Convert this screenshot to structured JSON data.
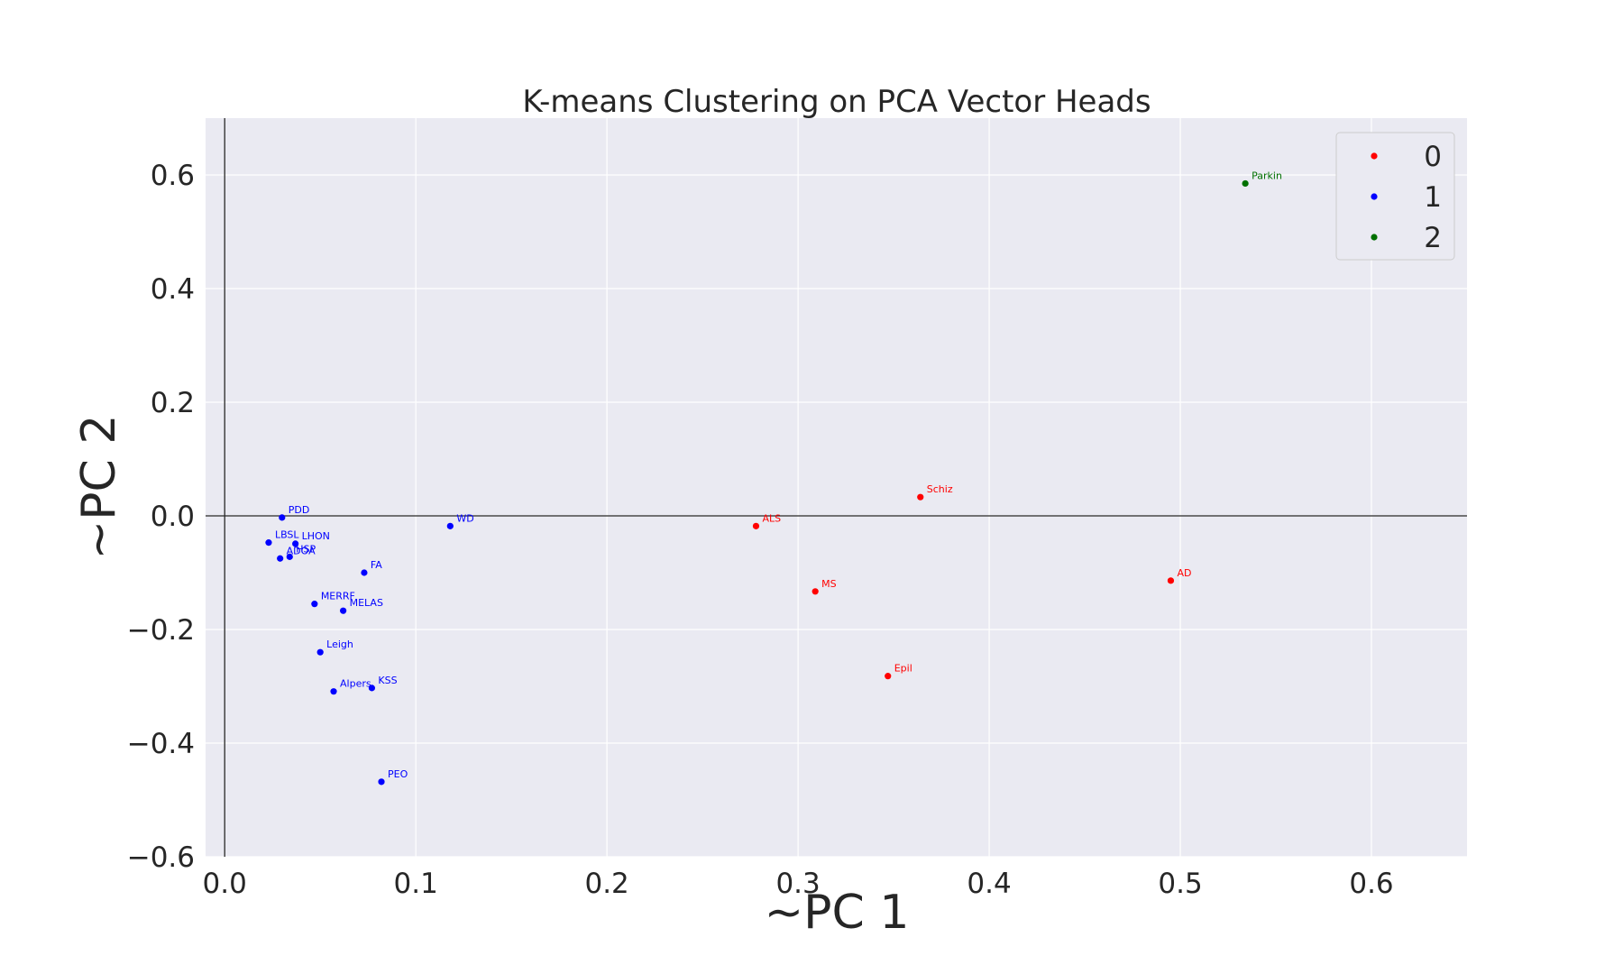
{
  "chart_data": {
    "type": "scatter",
    "title": "K-means Clustering on PCA Vector Heads",
    "xlabel": "~PC 1",
    "ylabel": "~PC 2",
    "xlim": [
      -0.01,
      0.65
    ],
    "ylim": [
      -0.6,
      0.7
    ],
    "xticks": [
      0.0,
      0.1,
      0.2,
      0.3,
      0.4,
      0.5,
      0.6
    ],
    "xtick_labels": [
      "0.0",
      "0.1",
      "0.2",
      "0.3",
      "0.4",
      "0.5",
      "0.6"
    ],
    "yticks": [
      0.6,
      0.4,
      0.2,
      0.0,
      -0.2,
      -0.4,
      -0.6
    ],
    "ytick_labels": [
      "0.6",
      "0.4",
      "0.2",
      "0.0",
      "−0.2",
      "−0.4",
      "−0.6"
    ],
    "grid": true,
    "reference_lines": {
      "x": 0.0,
      "y": 0.0
    },
    "legend_position": "top-right",
    "colors": {
      "plot_bg": "#eaeaf2",
      "grid": "#ffffff",
      "text": "#262626"
    },
    "series": [
      {
        "name": "0",
        "color": "#ff0000",
        "points": [
          {
            "label": "Schiz",
            "x": 0.364,
            "y": 0.033
          },
          {
            "label": "ALS",
            "x": 0.278,
            "y": -0.018
          },
          {
            "label": "MS",
            "x": 0.309,
            "y": -0.133
          },
          {
            "label": "AD",
            "x": 0.495,
            "y": -0.114
          },
          {
            "label": "Epil",
            "x": 0.347,
            "y": -0.282
          }
        ]
      },
      {
        "name": "1",
        "color": "#0000ff",
        "points": [
          {
            "label": "PDD",
            "x": 0.03,
            "y": -0.003
          },
          {
            "label": "LBSL",
            "x": 0.023,
            "y": -0.047
          },
          {
            "label": "LHON",
            "x": 0.037,
            "y": -0.049
          },
          {
            "label": "ADOA",
            "x": 0.029,
            "y": -0.075
          },
          {
            "label": "HSP",
            "x": 0.034,
            "y": -0.072
          },
          {
            "label": "FA",
            "x": 0.073,
            "y": -0.1
          },
          {
            "label": "WD",
            "x": 0.118,
            "y": -0.018
          },
          {
            "label": "MERRF",
            "x": 0.047,
            "y": -0.155
          },
          {
            "label": "MELAS",
            "x": 0.062,
            "y": -0.167
          },
          {
            "label": "Leigh",
            "x": 0.05,
            "y": -0.24
          },
          {
            "label": "Alpers",
            "x": 0.057,
            "y": -0.309
          },
          {
            "label": "KSS",
            "x": 0.077,
            "y": -0.303
          },
          {
            "label": "PEO",
            "x": 0.082,
            "y": -0.468
          }
        ]
      },
      {
        "name": "2",
        "color": "#007000",
        "points": [
          {
            "label": "Parkin",
            "x": 0.534,
            "y": 0.585
          }
        ]
      }
    ]
  }
}
